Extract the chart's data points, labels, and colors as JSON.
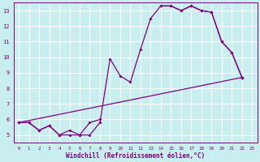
{
  "title": "",
  "xlabel": "Windchill (Refroidissement éolien,°C)",
  "ylabel": "",
  "bg_color": "#c8eef0",
  "grid_color": "#ffffff",
  "line_color": "#800080",
  "xlim": [
    -0.5,
    23.5
  ],
  "ylim": [
    4.5,
    13.5
  ],
  "xticks": [
    0,
    1,
    2,
    3,
    4,
    5,
    6,
    7,
    8,
    9,
    10,
    11,
    12,
    13,
    14,
    15,
    16,
    17,
    18,
    19,
    20,
    21,
    22,
    23
  ],
  "yticks": [
    5,
    6,
    7,
    8,
    9,
    10,
    11,
    12,
    13
  ],
  "line1_x": [
    0,
    1,
    2,
    3,
    4,
    5,
    6,
    7,
    8,
    9,
    10,
    11,
    12,
    13,
    14,
    15,
    16,
    17,
    18,
    19,
    20,
    21,
    22
  ],
  "line1_y": [
    5.8,
    5.8,
    5.3,
    5.6,
    5.0,
    5.0,
    5.0,
    5.0,
    5.8,
    9.9,
    8.8,
    8.4,
    10.5,
    12.5,
    13.3,
    13.3,
    13.0,
    13.3,
    13.0,
    12.9,
    11.0,
    10.3,
    8.7
  ],
  "line2_x": [
    0,
    1,
    2,
    3,
    4,
    5,
    6,
    7,
    8,
    14,
    15,
    16,
    17,
    18,
    19,
    20,
    21,
    22
  ],
  "line2_y": [
    5.8,
    5.8,
    5.3,
    5.6,
    5.0,
    5.3,
    5.0,
    5.8,
    6.0,
    13.3,
    13.3,
    13.0,
    13.3,
    13.0,
    12.9,
    11.0,
    10.3,
    8.7
  ],
  "line3_x": [
    0,
    22
  ],
  "line3_y": [
    5.8,
    8.7
  ]
}
